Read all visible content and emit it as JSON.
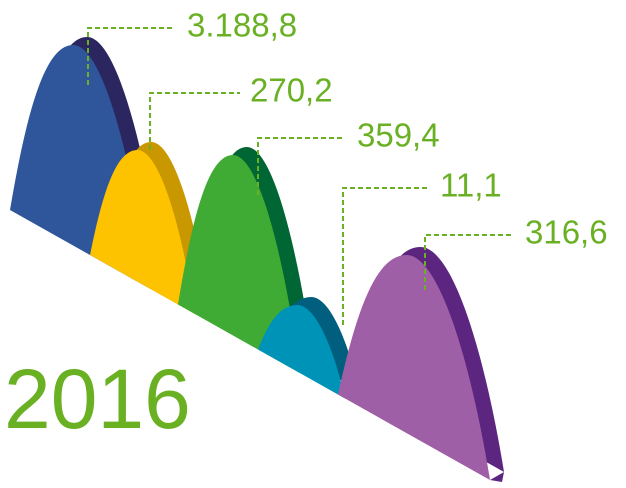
{
  "year": "2016",
  "labels": [
    "3.188,8",
    "270,2",
    "359,4",
    "11,1",
    "316,6"
  ]
}
